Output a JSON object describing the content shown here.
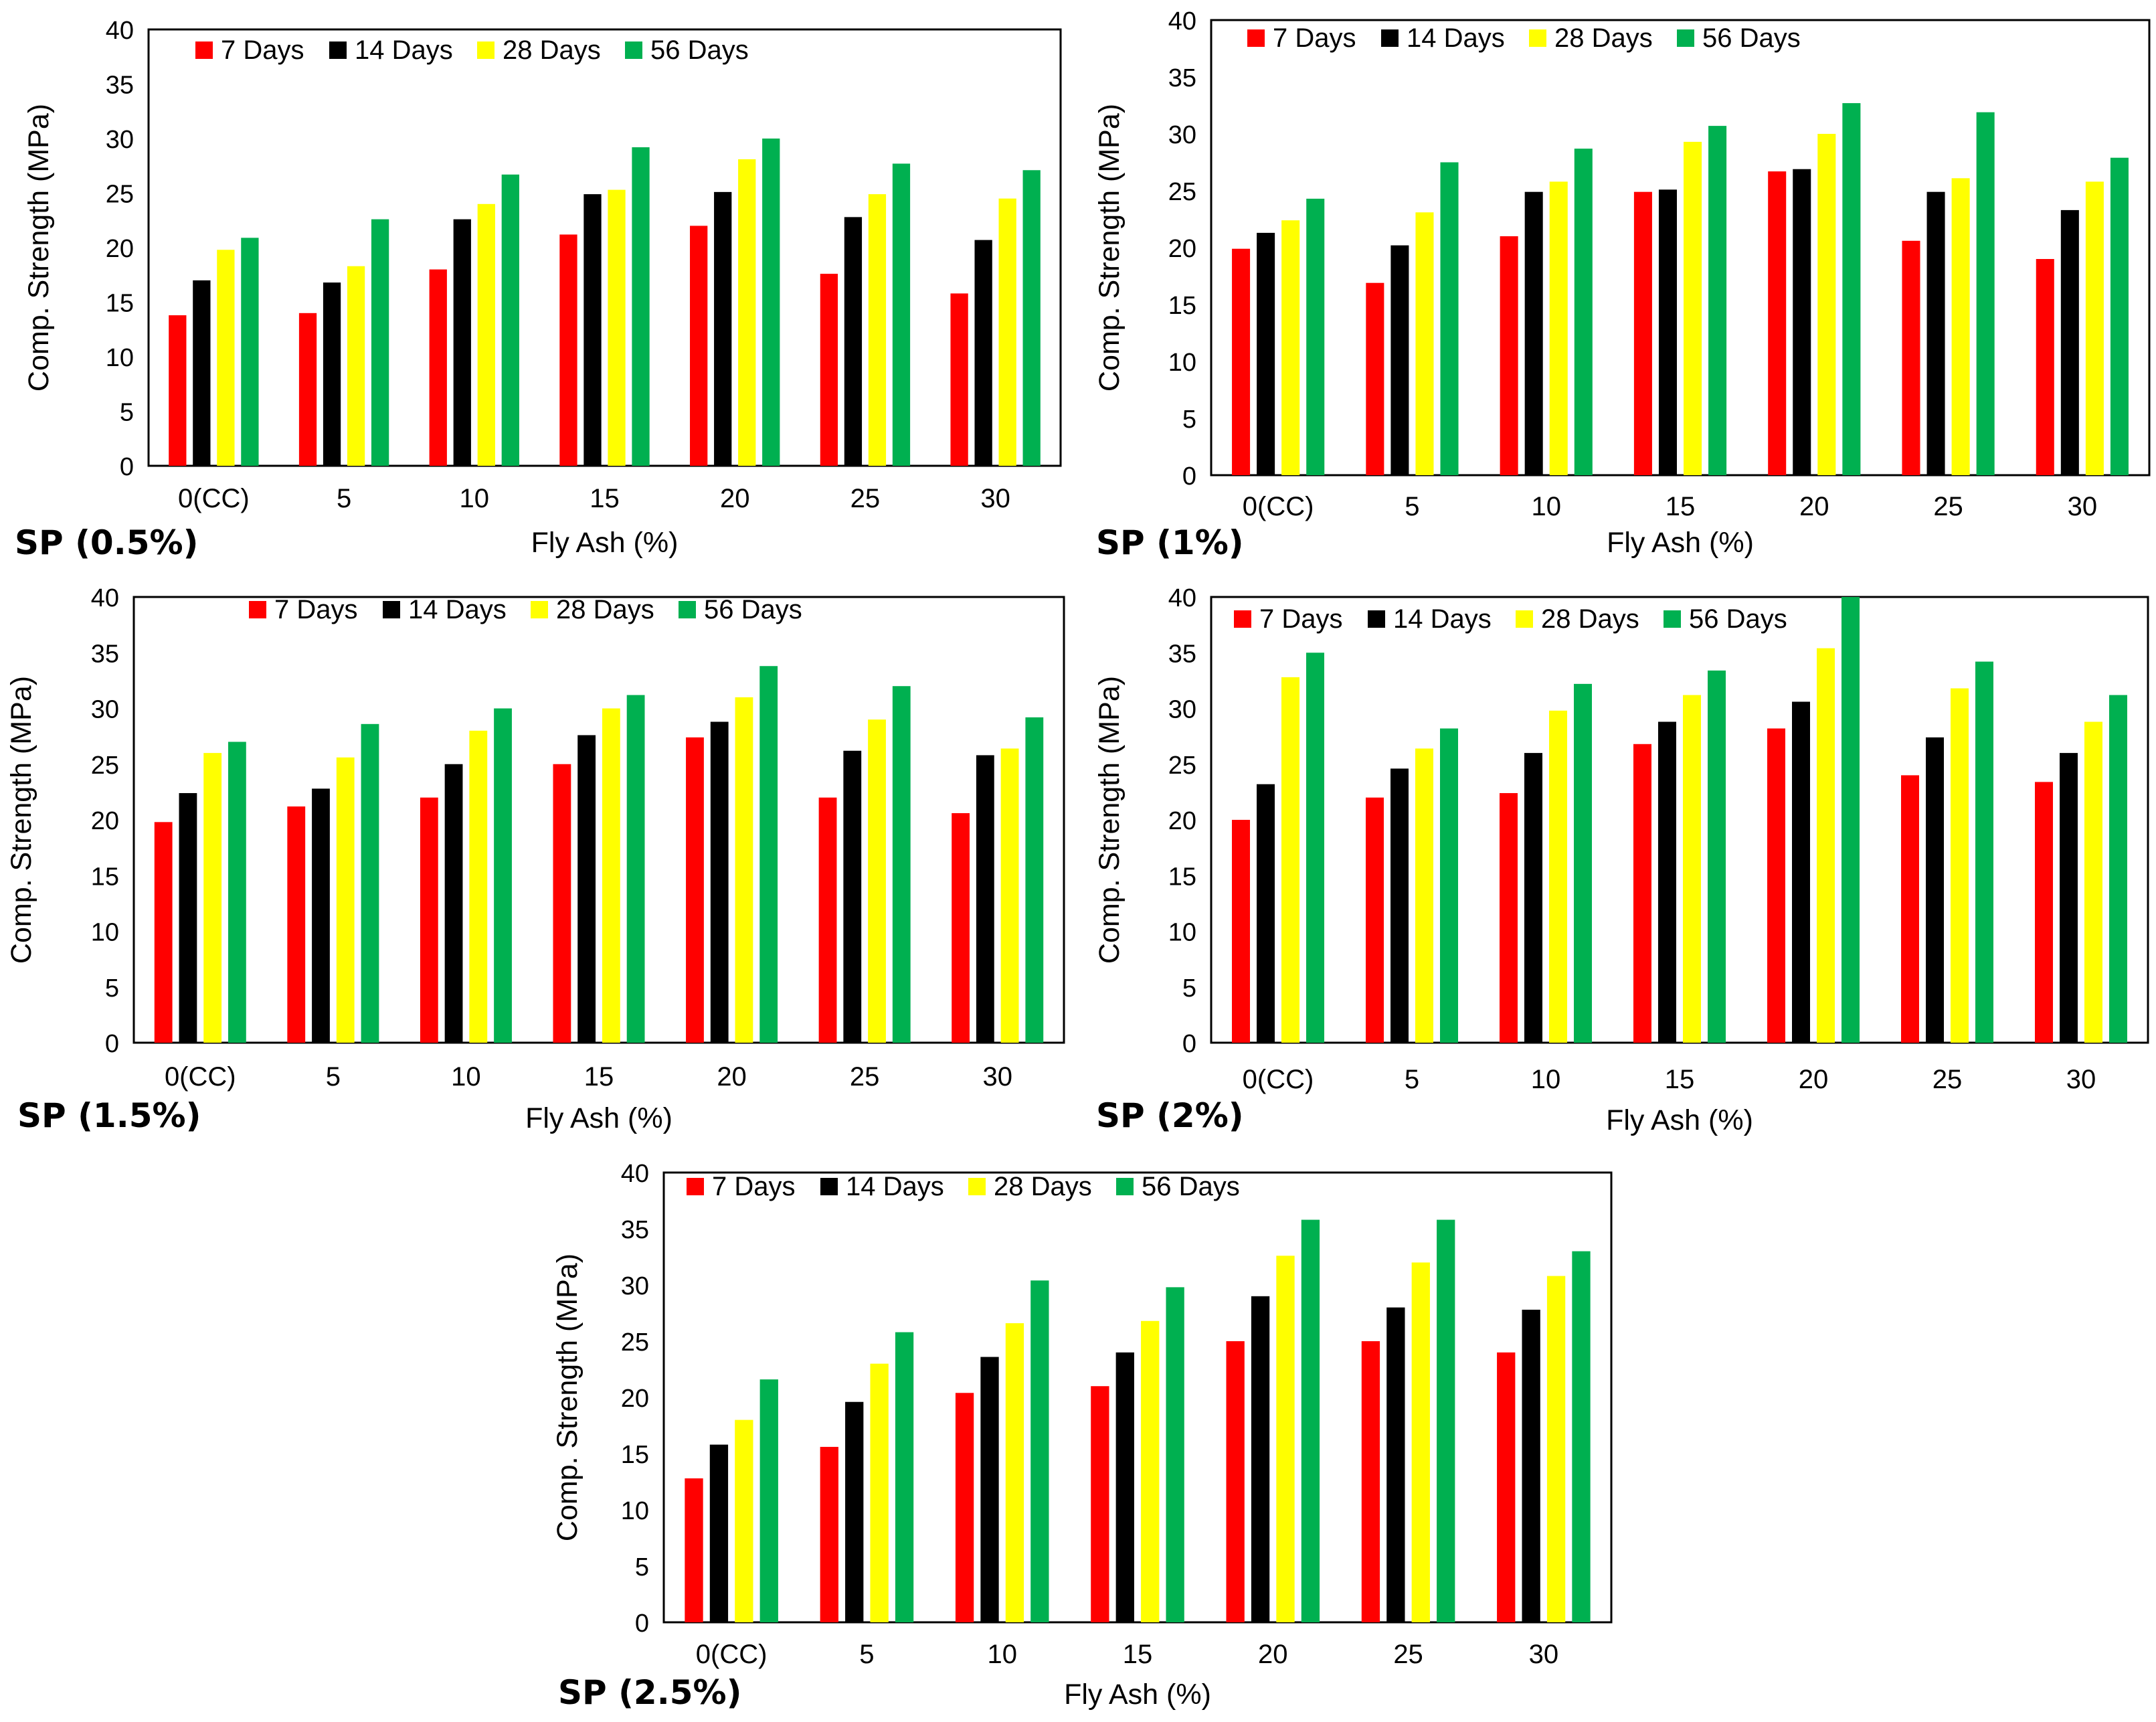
{
  "chart_data": [
    {
      "type": "bar",
      "panel_label": "SP (0.5%)",
      "xlabel": "Fly Ash (%)",
      "ylabel": "Comp. Strength (MPa)",
      "ylim": [
        0,
        40
      ],
      "yticks": [
        "0",
        "5",
        "10",
        "15",
        "20",
        "25",
        "30",
        "35",
        "40"
      ],
      "legend_position": "top-left",
      "categories": [
        "0(CC)",
        "5",
        "10",
        "15",
        "20",
        "25",
        "30"
      ],
      "series": [
        {
          "name": "7 Days",
          "color": "#ff0000",
          "values": [
            13.8,
            14.0,
            18.0,
            21.2,
            22.0,
            17.6,
            15.8
          ]
        },
        {
          "name": "14 Days",
          "color": "#000000",
          "values": [
            17.0,
            16.8,
            22.6,
            24.9,
            25.1,
            22.8,
            20.7
          ]
        },
        {
          "name": "28 Days",
          "color": "#ffff00",
          "values": [
            19.8,
            18.3,
            24.0,
            25.3,
            28.1,
            24.9,
            24.5
          ]
        },
        {
          "name": "56 Days",
          "color": "#00b050",
          "values": [
            20.9,
            22.6,
            26.7,
            29.2,
            30.0,
            27.7,
            27.1
          ]
        }
      ]
    },
    {
      "type": "bar",
      "panel_label": "SP (1%)",
      "xlabel": "Fly Ash (%)",
      "ylabel": "Comp. Strength (MPa)",
      "ylim": [
        0,
        40
      ],
      "yticks": [
        "0",
        "5",
        "10",
        "15",
        "20",
        "25",
        "30",
        "35",
        "40"
      ],
      "legend_position": "top-left",
      "categories": [
        "0(CC)",
        "5",
        "10",
        "15",
        "20",
        "25",
        "30"
      ],
      "series": [
        {
          "name": "7 Days",
          "color": "#ff0000",
          "values": [
            19.9,
            16.9,
            21.0,
            24.9,
            26.7,
            20.6,
            19.0
          ]
        },
        {
          "name": "14 Days",
          "color": "#000000",
          "values": [
            21.3,
            20.2,
            24.9,
            25.1,
            26.9,
            24.9,
            23.3
          ]
        },
        {
          "name": "28 Days",
          "color": "#ffff00",
          "values": [
            22.4,
            23.1,
            25.8,
            29.3,
            30.0,
            26.1,
            25.8
          ]
        },
        {
          "name": "56 Days",
          "color": "#00b050",
          "values": [
            24.3,
            27.5,
            28.7,
            30.7,
            32.7,
            31.9,
            27.9
          ]
        }
      ]
    },
    {
      "type": "bar",
      "panel_label": "SP (1.5%)",
      "xlabel": "Fly Ash (%)",
      "ylabel": "Comp. Strength (MPa)",
      "ylim": [
        0,
        40
      ],
      "yticks": [
        "0",
        "5",
        "10",
        "15",
        "20",
        "25",
        "30",
        "35",
        "40"
      ],
      "legend_position": "top-center",
      "categories": [
        "0(CC)",
        "5",
        "10",
        "15",
        "20",
        "25",
        "30"
      ],
      "series": [
        {
          "name": "7 Days",
          "color": "#ff0000",
          "values": [
            19.8,
            21.2,
            22.0,
            25.0,
            27.4,
            22.0,
            20.6
          ]
        },
        {
          "name": "14 Days",
          "color": "#000000",
          "values": [
            22.4,
            22.8,
            25.0,
            27.6,
            28.8,
            26.2,
            25.8
          ]
        },
        {
          "name": "28 Days",
          "color": "#ffff00",
          "values": [
            26.0,
            25.6,
            28.0,
            30.0,
            31.0,
            29.0,
            26.4
          ]
        },
        {
          "name": "56 Days",
          "color": "#00b050",
          "values": [
            27.0,
            28.6,
            30.0,
            31.2,
            33.8,
            32.0,
            29.2
          ]
        }
      ]
    },
    {
      "type": "bar",
      "panel_label": "SP (2%)",
      "xlabel": "Fly Ash (%)",
      "ylabel": "Comp. Strength (MPa)",
      "ylim": [
        0,
        40
      ],
      "yticks": [
        "0",
        "5",
        "10",
        "15",
        "20",
        "25",
        "30",
        "35",
        "40"
      ],
      "legend_position": "top-left",
      "categories": [
        "0(CC)",
        "5",
        "10",
        "15",
        "20",
        "25",
        "30"
      ],
      "series": [
        {
          "name": "7 Days",
          "color": "#ff0000",
          "values": [
            20.0,
            22.0,
            22.4,
            26.8,
            28.2,
            24.0,
            23.4
          ]
        },
        {
          "name": "14 Days",
          "color": "#000000",
          "values": [
            23.2,
            24.6,
            26.0,
            28.8,
            30.6,
            27.4,
            26.0
          ]
        },
        {
          "name": "28 Days",
          "color": "#ffff00",
          "values": [
            32.8,
            26.4,
            29.8,
            31.2,
            35.4,
            31.8,
            28.8
          ]
        },
        {
          "name": "56 Days",
          "color": "#00b050",
          "values": [
            35.0,
            28.2,
            32.2,
            33.4,
            40.0,
            34.2,
            31.2
          ]
        }
      ]
    },
    {
      "type": "bar",
      "panel_label": "SP (2.5%)",
      "xlabel": "Fly Ash (%)",
      "ylabel": "Comp. Strength (MPa)",
      "ylim": [
        0,
        40
      ],
      "yticks": [
        "0",
        "5",
        "10",
        "15",
        "20",
        "25",
        "30",
        "35",
        "40"
      ],
      "legend_position": "top-left",
      "categories": [
        "0(CC)",
        "5",
        "10",
        "15",
        "20",
        "25",
        "30"
      ],
      "series": [
        {
          "name": "7 Days",
          "color": "#ff0000",
          "values": [
            12.8,
            15.6,
            20.4,
            21.0,
            25.0,
            25.0,
            24.0
          ]
        },
        {
          "name": "14 Days",
          "color": "#000000",
          "values": [
            15.8,
            19.6,
            23.6,
            24.0,
            29.0,
            28.0,
            27.8
          ]
        },
        {
          "name": "28 Days",
          "color": "#ffff00",
          "values": [
            18.0,
            23.0,
            26.6,
            26.8,
            32.6,
            32.0,
            30.8
          ]
        },
        {
          "name": "56 Days",
          "color": "#00b050",
          "values": [
            21.6,
            25.8,
            30.4,
            29.8,
            35.8,
            35.8,
            33.0
          ]
        }
      ]
    }
  ]
}
